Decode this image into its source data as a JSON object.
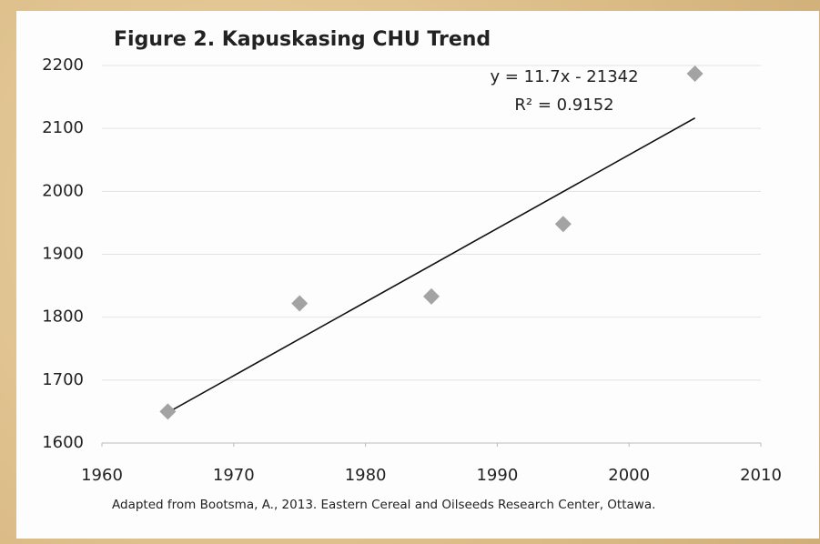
{
  "chart_data": {
    "type": "scatter",
    "title": "Figure 2. Kapuskasing CHU Trend",
    "source": "Adapted from Bootsma, A., 2013. Eastern Cereal and Oilseeds Research Center, Ottawa.",
    "x": [
      1965,
      1975,
      1985,
      1995,
      2005
    ],
    "values": [
      1650,
      1822,
      1833,
      1948,
      2187
    ],
    "color": "#a3a3a3",
    "xlim": [
      1960,
      2010
    ],
    "xticks": [
      1960,
      1970,
      1980,
      1990,
      2000,
      2010
    ],
    "ylim": [
      1600,
      2200
    ],
    "yticks": [
      1600,
      1700,
      1800,
      1900,
      2000,
      2100,
      2200
    ],
    "grid": true,
    "trendline": {
      "slope": 11.7,
      "intercept": -21342,
      "color": "#111111",
      "equation": "y = 11.7x - 21342",
      "r_squared": "R² = 0.9152"
    }
  }
}
